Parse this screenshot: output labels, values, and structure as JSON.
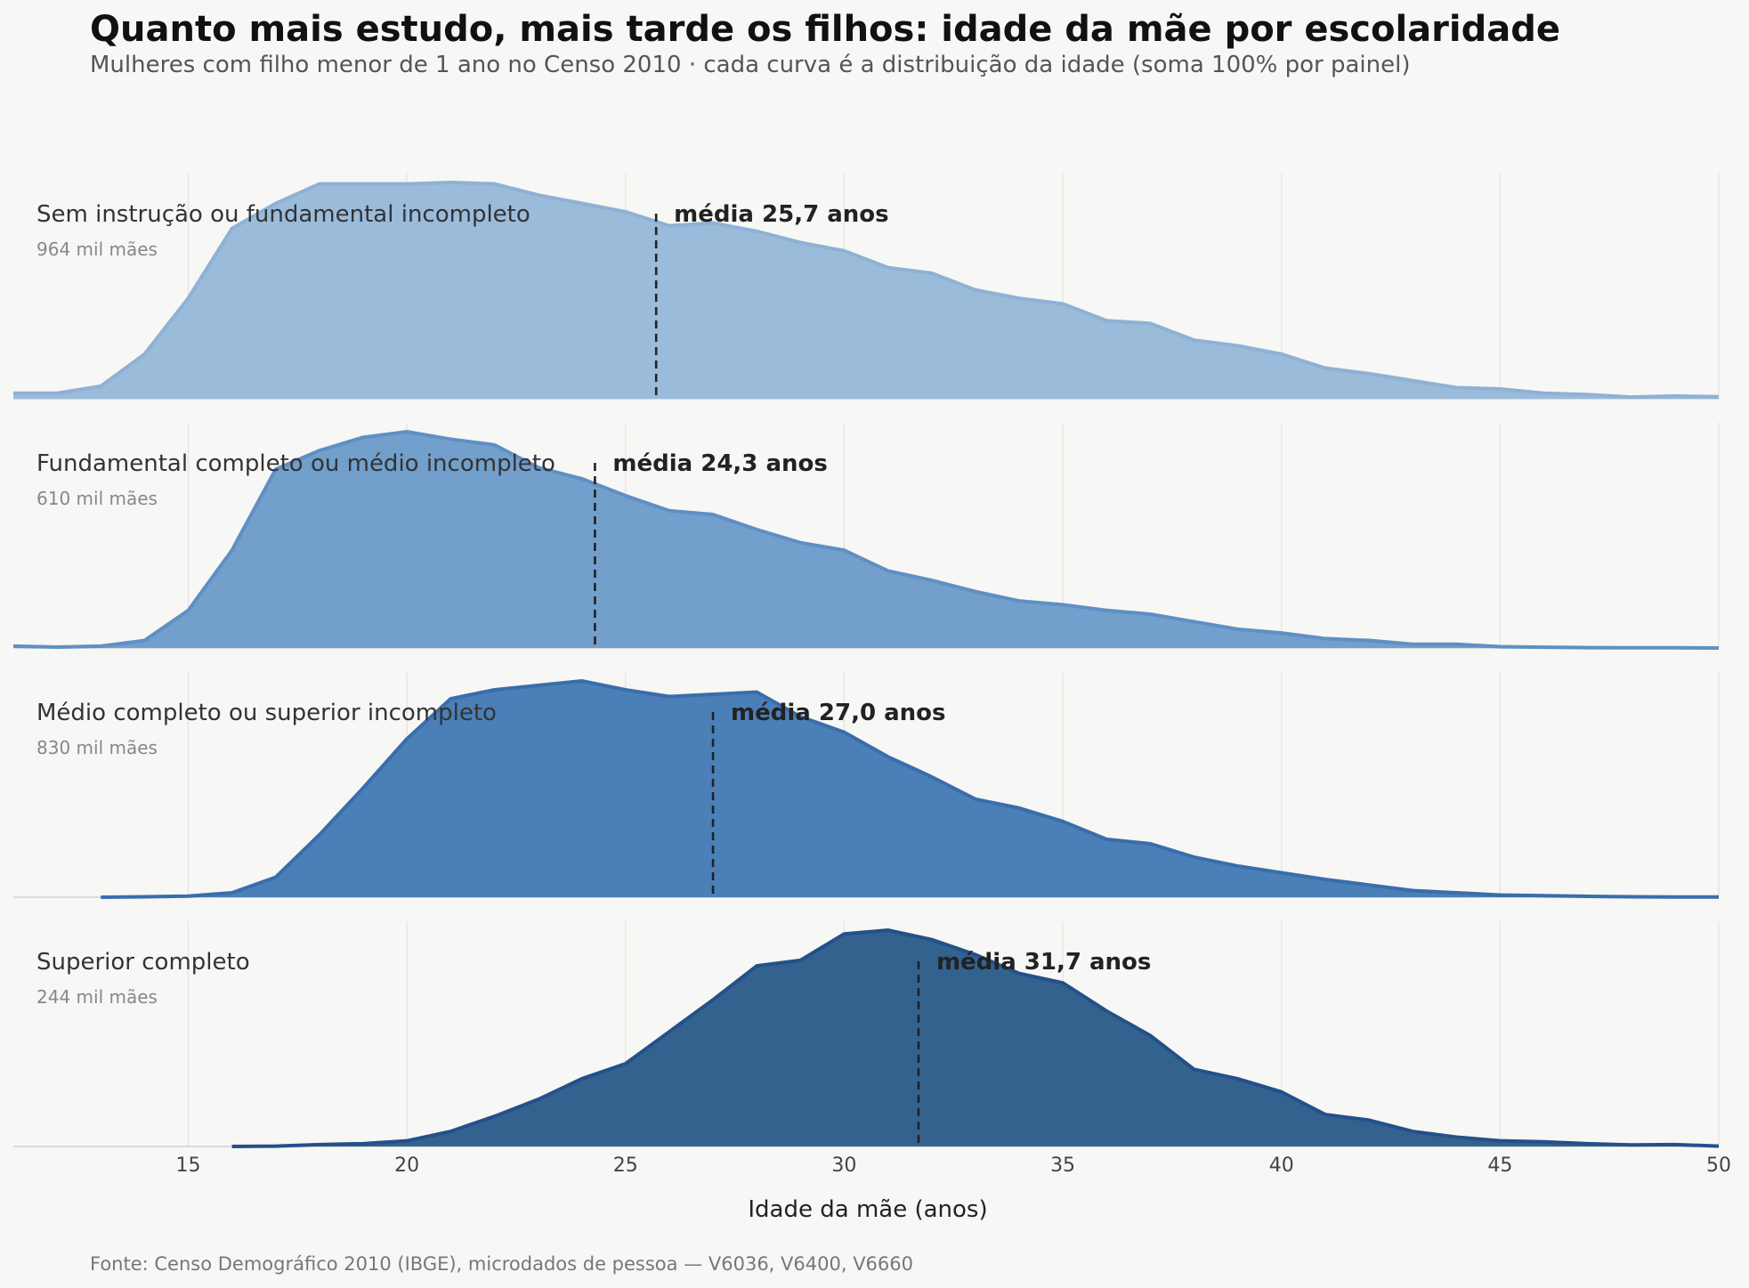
{
  "chart_data": {
    "type": "area",
    "title": "Quanto mais estudo, mais tarde os filhos: idade da mãe por escolaridade",
    "subtitle": "Mulheres com filho menor de 1 ano no Censo 2010 · cada curva é a distribuição da idade (soma 100% por painel)",
    "xlabel": "Idade da mãe (anos)",
    "xlim": [
      11,
      50
    ],
    "xticks": [
      15,
      20,
      25,
      30,
      35,
      40,
      45,
      50
    ],
    "grid": "vertical",
    "source": "Fonte: Censo Demográfico 2010 (IBGE), microdados de pessoa — V6036, V6400, V6660",
    "mean_prefix": "média",
    "mean_suffix": "anos",
    "panels": [
      {
        "name": "Sem instrução ou fundamental incompleto",
        "count_label": "964 mil mães",
        "mean": 25.7,
        "mean_text": "média 25,7 anos",
        "color": "#9bbbdb",
        "line_color": "#8eb1d4",
        "x": [
          11,
          12,
          13,
          14,
          15,
          16,
          17,
          18,
          19,
          20,
          21,
          22,
          23,
          24,
          25,
          26,
          27,
          28,
          29,
          30,
          31,
          32,
          33,
          34,
          35,
          36,
          37,
          38,
          39,
          40,
          41,
          42,
          43,
          44,
          45,
          46,
          47,
          48,
          49,
          50
        ],
        "values": [
          0.2,
          0.2,
          0.45,
          1.6,
          3.6,
          6.1,
          7.0,
          7.7,
          7.7,
          7.7,
          7.75,
          7.7,
          7.3,
          7.0,
          6.7,
          6.2,
          6.3,
          6.0,
          5.6,
          5.3,
          4.7,
          4.5,
          3.9,
          3.6,
          3.4,
          2.8,
          2.7,
          2.1,
          1.9,
          1.6,
          1.1,
          0.9,
          0.65,
          0.4,
          0.35,
          0.2,
          0.15,
          0.06,
          0.1,
          0.07
        ]
      },
      {
        "name": "Fundamental completo ou médio incompleto",
        "count_label": "610 mil mães",
        "mean": 24.3,
        "mean_text": "média 24,3 anos",
        "color": "#729fcc",
        "line_color": "#5f8fc4",
        "x": [
          11,
          12,
          13,
          14,
          15,
          16,
          17,
          18,
          19,
          20,
          21,
          22,
          23,
          24,
          25,
          26,
          27,
          28,
          29,
          30,
          31,
          32,
          33,
          34,
          35,
          36,
          37,
          38,
          39,
          40,
          41,
          42,
          43,
          44,
          45,
          46,
          47,
          48,
          49,
          50
        ],
        "values": [
          0.1,
          0.05,
          0.1,
          0.4,
          2.0,
          5.2,
          9.5,
          10.5,
          11.2,
          11.5,
          11.1,
          10.8,
          9.6,
          9.0,
          8.1,
          7.3,
          7.1,
          6.3,
          5.6,
          5.2,
          4.1,
          3.6,
          3.0,
          2.5,
          2.3,
          2.0,
          1.8,
          1.4,
          1.0,
          0.8,
          0.5,
          0.4,
          0.2,
          0.2,
          0.07,
          0.04,
          0.02,
          0.01,
          0.01,
          0.0
        ]
      },
      {
        "name": "Médio completo ou superior incompleto",
        "count_label": "830 mil mães",
        "mean": 27.0,
        "mean_text": "média 27,0 anos",
        "color": "#4a7fb8",
        "line_color": "#3a6dab",
        "x": [
          13,
          14,
          15,
          16,
          17,
          18,
          19,
          20,
          21,
          22,
          23,
          24,
          25,
          26,
          27,
          28,
          29,
          30,
          31,
          32,
          33,
          34,
          35,
          36,
          37,
          38,
          39,
          40,
          41,
          42,
          43,
          44,
          45,
          46,
          47,
          48,
          49,
          50
        ],
        "values": [
          0.0,
          0.02,
          0.05,
          0.2,
          0.9,
          2.8,
          4.9,
          7.1,
          8.9,
          9.3,
          9.5,
          9.7,
          9.3,
          9.0,
          9.1,
          9.2,
          8.1,
          7.4,
          6.3,
          5.4,
          4.4,
          4.0,
          3.4,
          2.6,
          2.4,
          1.8,
          1.4,
          1.1,
          0.8,
          0.55,
          0.3,
          0.2,
          0.1,
          0.07,
          0.04,
          0.02,
          0.01,
          0.01
        ]
      },
      {
        "name": "Superior completo",
        "count_label": "244 mil mães",
        "mean": 31.7,
        "mean_text": "média 31,7 anos",
        "color": "#33628f",
        "line_color": "#24508a",
        "x": [
          16,
          17,
          18,
          19,
          20,
          21,
          22,
          23,
          24,
          25,
          26,
          27,
          28,
          29,
          30,
          31,
          32,
          33,
          34,
          35,
          36,
          37,
          38,
          39,
          40,
          41,
          42,
          43,
          44,
          45,
          46,
          47,
          48,
          49,
          50
        ],
        "values": [
          0.0,
          0.02,
          0.1,
          0.15,
          0.3,
          0.8,
          1.6,
          2.5,
          3.6,
          4.4,
          6.1,
          7.8,
          9.6,
          9.9,
          11.3,
          11.5,
          11.0,
          10.2,
          9.2,
          8.7,
          7.2,
          5.9,
          4.1,
          3.6,
          2.9,
          1.7,
          1.4,
          0.8,
          0.5,
          0.3,
          0.25,
          0.15,
          0.08,
          0.1,
          0.02
        ]
      }
    ]
  }
}
